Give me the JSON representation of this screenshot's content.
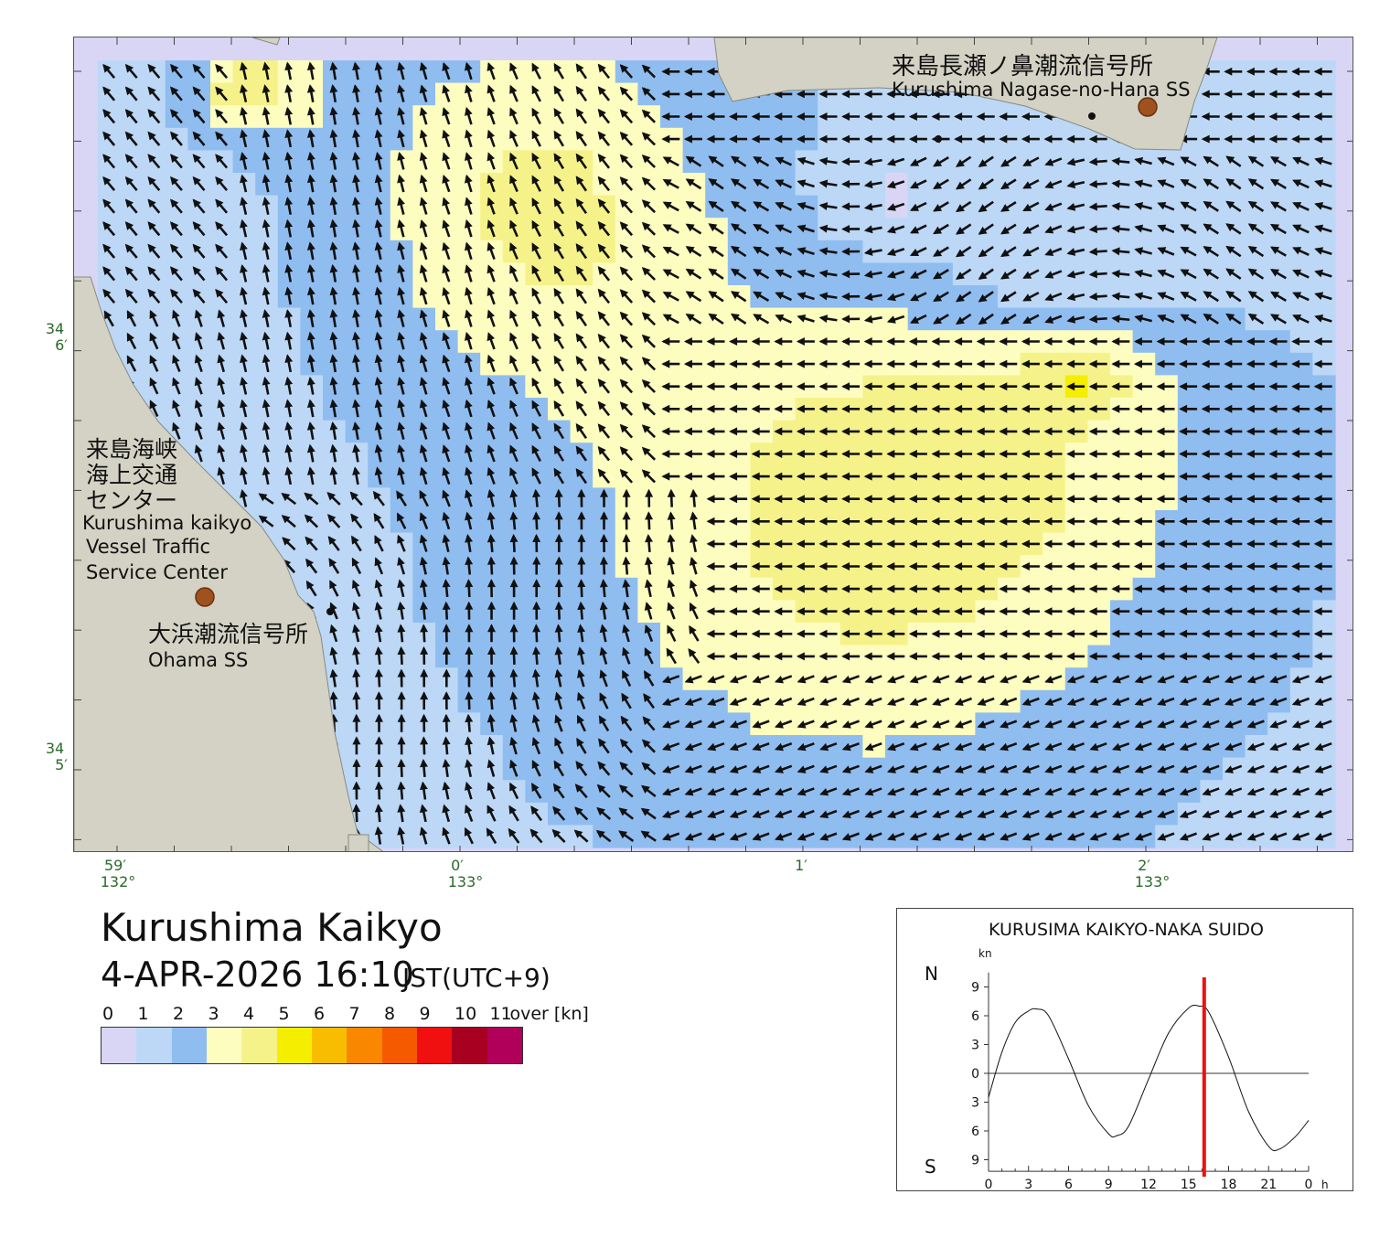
{
  "title": "Kurushima Kaikyo",
  "datetime": "4-APR-2026 16:10",
  "timezone": "JST(UTC+9)",
  "colors": {
    "land": "#d3d2c4",
    "water_low": "#d8d6f4",
    "arrow": "#111111",
    "station": "#a0521e",
    "tick_label": "#2a6a2a",
    "current_time_marker": "#ee1111"
  },
  "legend": {
    "ticks": [
      "0",
      "1",
      "2",
      "3",
      "4",
      "5",
      "6",
      "7",
      "8",
      "9",
      "10",
      "11"
    ],
    "over_label": "over",
    "unit": "[kn]",
    "colors": [
      "#d8d6f4",
      "#bcd8f6",
      "#90bdf0",
      "#fefdc0",
      "#f6f28a",
      "#f6ee00",
      "#f9bd00",
      "#fa8700",
      "#f55a00",
      "#f01010",
      "#a80020",
      "#b0005a"
    ]
  },
  "map": {
    "lat_labels": [
      {
        "deg": "34",
        "min": "6′",
        "lat": 34.1
      },
      {
        "deg": "34",
        "min": "5′",
        "lat": 34.0833
      }
    ],
    "lon_labels": [
      {
        "min": "59′",
        "deg": "132°",
        "lon": 132.9833
      },
      {
        "min": "0′",
        "deg": "133°",
        "lon": 133.0
      },
      {
        "min": "1′",
        "deg": "",
        "lon": 133.0167
      },
      {
        "min": "2′",
        "deg": "133°",
        "lon": 133.0333
      }
    ],
    "stations": [
      {
        "name_ja": "来島長瀬ノ鼻潮流信号所",
        "name_en": "Kurushima Nagase-no-Hana SS"
      },
      {
        "name_ja": "大浜潮流信号所",
        "name_en": "Ohama SS"
      }
    ],
    "vts": {
      "name_ja_lines": [
        "来島海峡",
        "海上交通",
        "センター"
      ],
      "name_en_lines": [
        "Kurushima kaikyo",
        "Vessel Traffic",
        "Service Center"
      ]
    }
  },
  "tide_chart": {
    "title": "KURUSIMA KAIKYO-NAKA SUIDO",
    "unit": "kn",
    "north_label": "N",
    "south_label": "S",
    "y_tick_labels": [
      "9",
      "6",
      "3",
      "0",
      "3",
      "6",
      "9"
    ],
    "x_tick_labels": [
      "0",
      "3",
      "6",
      "9",
      "12",
      "15",
      "18",
      "21",
      "0"
    ],
    "x_unit": "h",
    "current_hour": 16.17,
    "curve": {
      "hours": [
        0,
        1,
        2,
        3,
        3.6,
        4.5,
        6,
        7.5,
        9,
        9.6,
        10.5,
        12,
        13.5,
        15,
        15.8,
        16.5,
        18,
        19.5,
        21,
        21.8,
        23,
        24
      ],
      "knots": [
        -2.5,
        2.2,
        5.3,
        6.5,
        6.7,
        6.0,
        1.5,
        -3.4,
        -6.3,
        -6.5,
        -5.5,
        -0.6,
        4.2,
        6.8,
        7.0,
        6.4,
        1.7,
        -4.0,
        -7.6,
        -7.9,
        -6.6,
        -4.9
      ]
    }
  }
}
